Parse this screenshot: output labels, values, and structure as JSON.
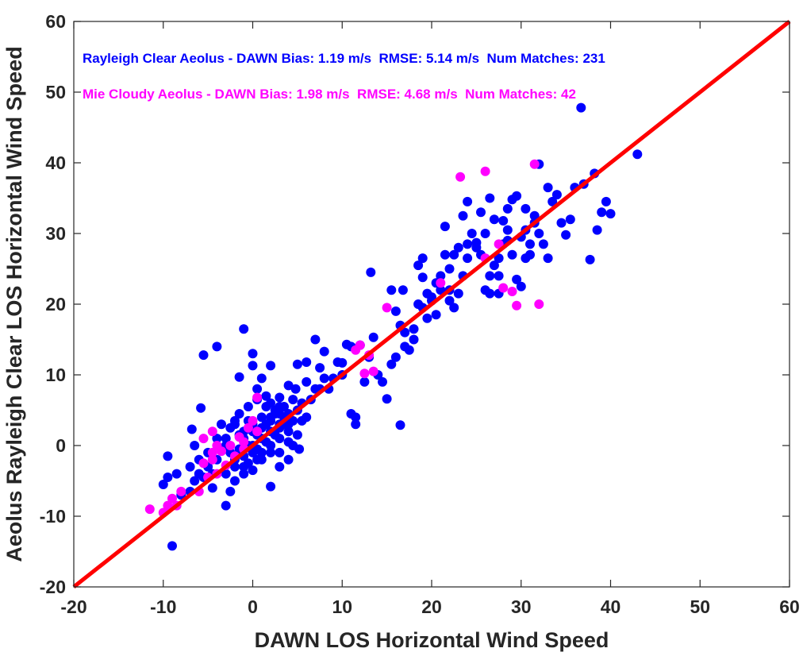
{
  "chart_data": {
    "type": "scatter",
    "xlabel": "DAWN LOS Horizontal Wind Speed",
    "ylabel": "Aeolus Rayleigh Clear LOS Horizontal Wind Speed",
    "xlim": [
      -20,
      60
    ],
    "ylim": [
      -20,
      60
    ],
    "xticks": [
      "-20",
      "-10",
      "0",
      "10",
      "20",
      "30",
      "40",
      "50",
      "60"
    ],
    "yticks": [
      "-20",
      "-10",
      "0",
      "10",
      "20",
      "30",
      "40",
      "50",
      "60"
    ],
    "grid": false,
    "reference_line": {
      "name": "1:1 line",
      "x": [
        -20,
        60
      ],
      "y": [
        -20,
        60
      ],
      "color": "#ff0000"
    },
    "annotations": [
      {
        "text": "Rayleigh Clear Aeolus - DAWN Bias: 1.19 m/s  RMSE: 5.14 m/s  Num Matches: 231",
        "color": "#0000ff"
      },
      {
        "text": "Mie Cloudy Aeolus - DAWN Bias: 1.98 m/s  RMSE: 4.68 m/s  Num Matches: 42",
        "color": "#ff00ff"
      }
    ],
    "series": [
      {
        "color": "#0000ff",
        "points": [
          [
            -9.5,
            -1.5
          ],
          [
            -10,
            -5.5
          ],
          [
            -9,
            -14.2
          ],
          [
            -8.5,
            -4
          ],
          [
            -9.5,
            -4.5
          ],
          [
            -7,
            -6.5
          ],
          [
            -6.5,
            -5
          ],
          [
            -6,
            -2
          ],
          [
            -5.5,
            -4.5
          ],
          [
            -5,
            -1
          ],
          [
            -5.8,
            5.3
          ],
          [
            -6.8,
            2.3
          ],
          [
            -6.5,
            0
          ],
          [
            -5.5,
            12.8
          ],
          [
            -4,
            14
          ],
          [
            -4.5,
            -4
          ],
          [
            -3,
            -8.5
          ],
          [
            -2.5,
            -6.5
          ],
          [
            -2,
            -3
          ],
          [
            -2,
            -2
          ],
          [
            -3,
            1
          ],
          [
            -2,
            3
          ],
          [
            -1,
            2
          ],
          [
            -1.5,
            9.7
          ],
          [
            -1,
            16.5
          ],
          [
            0,
            13
          ],
          [
            0,
            11.3
          ],
          [
            1,
            9.5
          ],
          [
            0.5,
            8
          ],
          [
            2,
            11.3
          ],
          [
            1.5,
            7
          ],
          [
            2,
            4
          ],
          [
            3,
            3
          ],
          [
            1,
            1
          ],
          [
            0,
            2
          ],
          [
            -1,
            1
          ],
          [
            -0.5,
            0
          ],
          [
            0,
            -1
          ],
          [
            0.5,
            -2
          ],
          [
            0,
            -3.5
          ],
          [
            -0.5,
            -2.5
          ],
          [
            -1,
            -3
          ],
          [
            1,
            -1
          ],
          [
            2,
            0
          ],
          [
            3,
            -1
          ],
          [
            2,
            -5.8
          ],
          [
            3,
            -3
          ],
          [
            4,
            -2
          ],
          [
            4.5,
            0
          ],
          [
            5,
            1.5
          ],
          [
            5.2,
            -0.5
          ],
          [
            4,
            3
          ],
          [
            3.5,
            5.5
          ],
          [
            3,
            6.8
          ],
          [
            4,
            8.5
          ],
          [
            4.8,
            8
          ],
          [
            5,
            11.5
          ],
          [
            6,
            11.8
          ],
          [
            7,
            15
          ],
          [
            7.5,
            11
          ],
          [
            8,
            13.3
          ],
          [
            8.5,
            8
          ],
          [
            7.5,
            8
          ],
          [
            9.5,
            11.8
          ],
          [
            10,
            11.7
          ],
          [
            10.5,
            14.3
          ],
          [
            11,
            14
          ],
          [
            12,
            14.2
          ],
          [
            12.5,
            9
          ],
          [
            11,
            4.5
          ],
          [
            11.5,
            3
          ],
          [
            11.5,
            4
          ],
          [
            13,
            12.5
          ],
          [
            13.5,
            15.3
          ],
          [
            14,
            10
          ],
          [
            14.5,
            9
          ],
          [
            15,
            6.6
          ],
          [
            15.5,
            11.5
          ],
          [
            16,
            12.5
          ],
          [
            16.5,
            17
          ],
          [
            16.5,
            2.9
          ],
          [
            17,
            14
          ],
          [
            17.5,
            13.5
          ],
          [
            18,
            15
          ],
          [
            18.5,
            20
          ],
          [
            19,
            23.8
          ],
          [
            18.5,
            25.5
          ],
          [
            19,
            26.5
          ],
          [
            20,
            21
          ],
          [
            21,
            22
          ],
          [
            21.5,
            31
          ],
          [
            22,
            22
          ],
          [
            22.5,
            19.5
          ],
          [
            23,
            21.5
          ],
          [
            23.5,
            24
          ],
          [
            24,
            26.5
          ],
          [
            24,
            28.5
          ],
          [
            25,
            28.7
          ],
          [
            25.5,
            27
          ],
          [
            26,
            22
          ],
          [
            26.5,
            21.5
          ],
          [
            27,
            25.5
          ],
          [
            27.5,
            24
          ],
          [
            28,
            31.8
          ],
          [
            28.5,
            33.5
          ],
          [
            29,
            34.8
          ],
          [
            29.5,
            35.3
          ],
          [
            30,
            29.5
          ],
          [
            30.5,
            33.5
          ],
          [
            31,
            27
          ],
          [
            31.5,
            31.5
          ],
          [
            32,
            39.8
          ],
          [
            33,
            36.5
          ],
          [
            34,
            35.5
          ],
          [
            35,
            29.8
          ],
          [
            35.5,
            32
          ],
          [
            36,
            36.5
          ],
          [
            36.7,
            47.8
          ],
          [
            37,
            37
          ],
          [
            37.7,
            26.3
          ],
          [
            38.2,
            38.5
          ],
          [
            38.5,
            30.5
          ],
          [
            39,
            33
          ],
          [
            39.5,
            34.5
          ],
          [
            40,
            32.8
          ],
          [
            43,
            41.2
          ],
          [
            13.2,
            24.5
          ],
          [
            15.5,
            22
          ],
          [
            16,
            19
          ],
          [
            16.8,
            22
          ],
          [
            19.5,
            18
          ],
          [
            20,
            20.5
          ],
          [
            21,
            24
          ],
          [
            22,
            25
          ],
          [
            22.5,
            27
          ],
          [
            23.5,
            32.5
          ],
          [
            24,
            34.5
          ],
          [
            24.5,
            30
          ],
          [
            25,
            28
          ],
          [
            25.5,
            33
          ],
          [
            26,
            30
          ],
          [
            26.5,
            24
          ],
          [
            27.5,
            21.5
          ],
          [
            28,
            28.5
          ],
          [
            28.5,
            29
          ],
          [
            29,
            27
          ],
          [
            29.5,
            23.5
          ],
          [
            30,
            22.5
          ],
          [
            30.5,
            26.5
          ],
          [
            31.5,
            32.5
          ],
          [
            32,
            30
          ],
          [
            31,
            28.5
          ],
          [
            32.5,
            28.5
          ],
          [
            33,
            26.5
          ],
          [
            27,
            32
          ],
          [
            23,
            28
          ],
          [
            20.5,
            18.5
          ],
          [
            19,
            19.5
          ],
          [
            17,
            16
          ],
          [
            18,
            16.5
          ],
          [
            2,
            6
          ],
          [
            2.5,
            5
          ],
          [
            3,
            4.5
          ],
          [
            3.5,
            3
          ],
          [
            4,
            2
          ],
          [
            4.5,
            3.5
          ],
          [
            1.5,
            5.5
          ],
          [
            0.5,
            6.5
          ],
          [
            -0.5,
            5.5
          ],
          [
            -1.5,
            4.5
          ],
          [
            -2,
            3.5
          ],
          [
            -2.5,
            2.5
          ],
          [
            -3.5,
            3
          ],
          [
            -4,
            1
          ],
          [
            -3,
            0
          ],
          [
            -2.5,
            -1
          ],
          [
            -1.5,
            -0.5
          ],
          [
            -1,
            -1.5
          ],
          [
            0.5,
            -0.5
          ],
          [
            1.5,
            0.5
          ],
          [
            2.5,
            1.5
          ],
          [
            3,
            2.5
          ],
          [
            3.5,
            4
          ],
          [
            4,
            4.5
          ],
          [
            5,
            5
          ],
          [
            5.5,
            3.5
          ],
          [
            6,
            4
          ],
          [
            6.5,
            6.5
          ],
          [
            7,
            8
          ],
          [
            8,
            9.5
          ],
          [
            9,
            9.5
          ],
          [
            10,
            10
          ],
          [
            0,
            3
          ],
          [
            1,
            2.5
          ],
          [
            2,
            2
          ],
          [
            3,
            1
          ],
          [
            4,
            0.5
          ],
          [
            2,
            -1
          ],
          [
            1,
            -2
          ],
          [
            -1,
            -4
          ],
          [
            -2,
            -5
          ],
          [
            -4,
            -2
          ],
          [
            -5,
            -3
          ],
          [
            -3,
            -4
          ],
          [
            -6,
            -4
          ],
          [
            -7,
            -3
          ],
          [
            -8,
            -7
          ],
          [
            -4.5,
            -6
          ],
          [
            -2,
            -1.5
          ],
          [
            0,
            0
          ],
          [
            1,
            4
          ],
          [
            2,
            3.5
          ],
          [
            3,
            5.5
          ],
          [
            -0.5,
            3.5
          ],
          [
            1.5,
            3
          ],
          [
            2.5,
            4.5
          ],
          [
            0.5,
            1.5
          ],
          [
            -1.5,
            1.5
          ],
          [
            4.5,
            6.5
          ],
          [
            5.5,
            6
          ],
          [
            6,
            9
          ],
          [
            20.5,
            23
          ],
          [
            33.5,
            34.5
          ],
          [
            26.5,
            35
          ],
          [
            28.5,
            30.5
          ],
          [
            21.5,
            27
          ],
          [
            30.5,
            30.5
          ],
          [
            34.5,
            31.5
          ],
          [
            22,
            20.5
          ],
          [
            19.5,
            21.5
          ],
          [
            27.5,
            26.5
          ]
        ]
      },
      {
        "color": "#ff00ff",
        "points": [
          [
            -11.5,
            -9
          ],
          [
            -10,
            -9.5
          ],
          [
            -9.5,
            -8.5
          ],
          [
            -9,
            -7.5
          ],
          [
            -8.5,
            -8.5
          ],
          [
            -8,
            -6.5
          ],
          [
            -6,
            -6.5
          ],
          [
            -5.5,
            -2.5
          ],
          [
            -5,
            -4.5
          ],
          [
            -4.5,
            -2
          ],
          [
            -4,
            -4
          ],
          [
            -4.5,
            -1
          ],
          [
            -4,
            0
          ],
          [
            -3.5,
            -0.8
          ],
          [
            -3,
            -2.8
          ],
          [
            -2.5,
            0
          ],
          [
            -2,
            -1.5
          ],
          [
            -1.5,
            1.2
          ],
          [
            -1,
            -0.5
          ],
          [
            -4.5,
            2
          ],
          [
            -5.5,
            1
          ],
          [
            0,
            3.5
          ],
          [
            0.5,
            2
          ],
          [
            -0.5,
            2.5
          ],
          [
            0.5,
            6.8
          ],
          [
            -1,
            0.5
          ],
          [
            11.5,
            13.5
          ],
          [
            12,
            14.2
          ],
          [
            12.5,
            10.2
          ],
          [
            13,
            12.8
          ],
          [
            13.5,
            10.5
          ],
          [
            15,
            19.5
          ],
          [
            21,
            23
          ],
          [
            23.2,
            38
          ],
          [
            26,
            38.8
          ],
          [
            26,
            26.5
          ],
          [
            27.5,
            28.5
          ],
          [
            28,
            22.3
          ],
          [
            29,
            21.8
          ],
          [
            29.5,
            19.8
          ],
          [
            31.5,
            39.8
          ],
          [
            32,
            20
          ]
        ]
      }
    ]
  }
}
